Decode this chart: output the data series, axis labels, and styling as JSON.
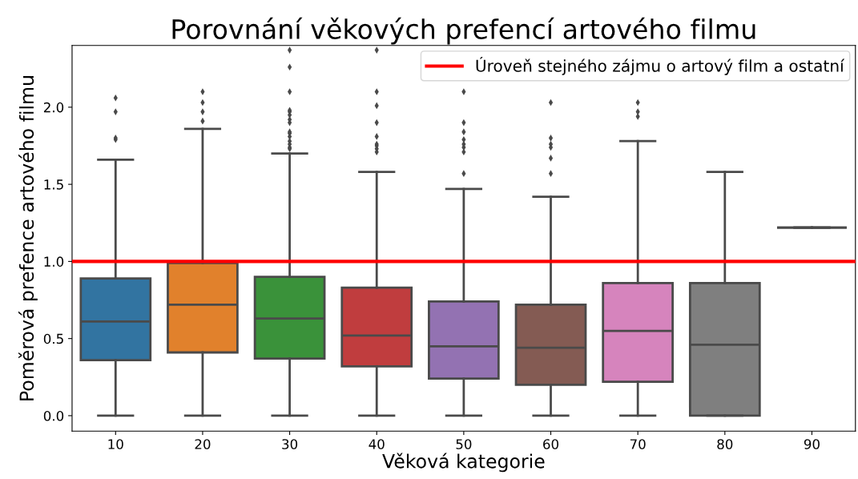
{
  "chart_data": {
    "type": "box",
    "title": "Porovnání věkových prefencí artového filmu",
    "xlabel": "Věková kategorie",
    "ylabel": "Poměrová prefence artového filmu",
    "categories": [
      "10",
      "20",
      "30",
      "40",
      "50",
      "60",
      "70",
      "80",
      "90"
    ],
    "boxes": [
      {
        "low": 0.0,
        "q1": 0.36,
        "median": 0.61,
        "q3": 0.89,
        "high": 1.66,
        "outliers": [
          2.06,
          1.97,
          1.8,
          1.79
        ]
      },
      {
        "low": 0.0,
        "q1": 0.41,
        "median": 0.72,
        "q3": 0.99,
        "high": 1.86,
        "outliers": [
          1.91,
          1.97,
          2.03,
          2.1
        ]
      },
      {
        "low": 0.0,
        "q1": 0.37,
        "median": 0.63,
        "q3": 0.9,
        "high": 1.7,
        "outliers": [
          2.37,
          2.26,
          2.1,
          1.98,
          1.97,
          1.95,
          1.92,
          1.9,
          1.84,
          1.83,
          1.81,
          1.78,
          1.76,
          1.74,
          1.73
        ]
      },
      {
        "low": 0.0,
        "q1": 0.32,
        "median": 0.52,
        "q3": 0.83,
        "high": 1.58,
        "outliers": [
          2.37,
          2.1,
          2.01,
          1.9,
          1.81,
          1.76,
          1.75,
          1.73,
          1.71
        ]
      },
      {
        "low": 0.0,
        "q1": 0.24,
        "median": 0.45,
        "q3": 0.74,
        "high": 1.47,
        "outliers": [
          2.1,
          1.9,
          1.84,
          1.79,
          1.76,
          1.74,
          1.71,
          1.57
        ]
      },
      {
        "low": 0.0,
        "q1": 0.2,
        "median": 0.44,
        "q3": 0.72,
        "high": 1.42,
        "outliers": [
          2.03,
          1.8,
          1.76,
          1.74,
          1.67,
          1.57
        ]
      },
      {
        "low": 0.0,
        "q1": 0.22,
        "median": 0.55,
        "q3": 0.86,
        "high": 1.78,
        "outliers": [
          2.03,
          1.97,
          1.94
        ]
      },
      {
        "low": 0.0,
        "q1": 0.0,
        "median": 0.46,
        "q3": 0.86,
        "high": 1.58
      },
      {
        "low": 1.22,
        "q1": 1.22,
        "median": 1.22,
        "q3": 1.22,
        "high": 1.22
      }
    ],
    "colors": [
      "#3274a1",
      "#e1812c",
      "#3a923a",
      "#c03d3e",
      "#9372b2",
      "#845b53",
      "#d684bd",
      "#7f7f7f",
      "#3f3f3f"
    ],
    "marker": "diamond",
    "ylim": [
      -0.1,
      2.4
    ],
    "yticks": [
      {
        "value": 0,
        "label": "0.0"
      },
      0.5,
      {
        "value": 1,
        "label": "1.0"
      },
      1.5,
      {
        "value": 2,
        "label": "2.0"
      }
    ],
    "ref_lines": [
      {
        "axis": "y",
        "value": 1,
        "label": "Úroveň stejného zájmu o artový film a ostatní",
        "color": "#ff0000",
        "line_style": "solid"
      }
    ],
    "legend": "top right",
    "grid": false
  }
}
